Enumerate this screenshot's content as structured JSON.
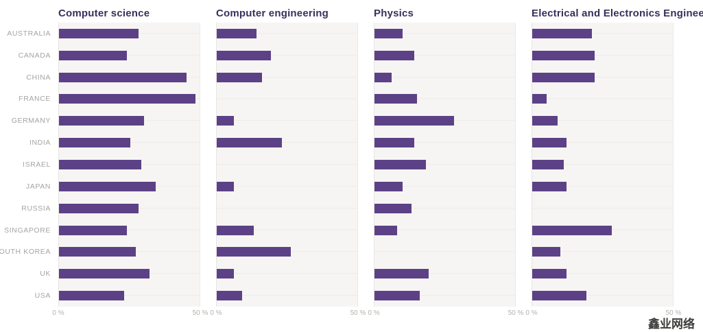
{
  "chart_data": {
    "type": "bar",
    "orientation": "horizontal",
    "unit": "%",
    "categories": [
      "AUSTRALIA",
      "CANADA",
      "CHINA",
      "FRANCE",
      "GERMANY",
      "INDIA",
      "ISRAEL",
      "JAPAN",
      "RUSSIA",
      "SINGAPORE",
      "SOUTH KOREA",
      "UK",
      "USA"
    ],
    "panels": [
      {
        "title": "Computer science",
        "values": [
          28,
          24,
          45,
          48,
          30,
          25,
          29,
          34,
          28,
          24,
          27,
          32,
          23
        ]
      },
      {
        "title": "Computer engineering",
        "values": [
          14,
          19,
          16,
          0,
          6,
          23,
          0,
          6,
          0,
          13,
          26,
          6,
          9
        ]
      },
      {
        "title": "Physics",
        "values": [
          10,
          14,
          6,
          15,
          28,
          14,
          18,
          10,
          13,
          8,
          0,
          19,
          16
        ]
      },
      {
        "title": "Electrical and Electronics Engineering",
        "values": [
          21,
          22,
          22,
          5,
          9,
          12,
          11,
          12,
          0,
          28,
          10,
          12,
          19
        ]
      }
    ],
    "xlim": [
      0,
      50
    ],
    "x_tick_labels": [
      "0 %",
      "50 %"
    ],
    "bar_color": "#5c4187",
    "title_color": "#3a2f5c",
    "plot_background": "#f6f5f3",
    "legend": "none",
    "grid": "vertical ticks at 0% and 50% only"
  },
  "watermark": "鑫业网络"
}
